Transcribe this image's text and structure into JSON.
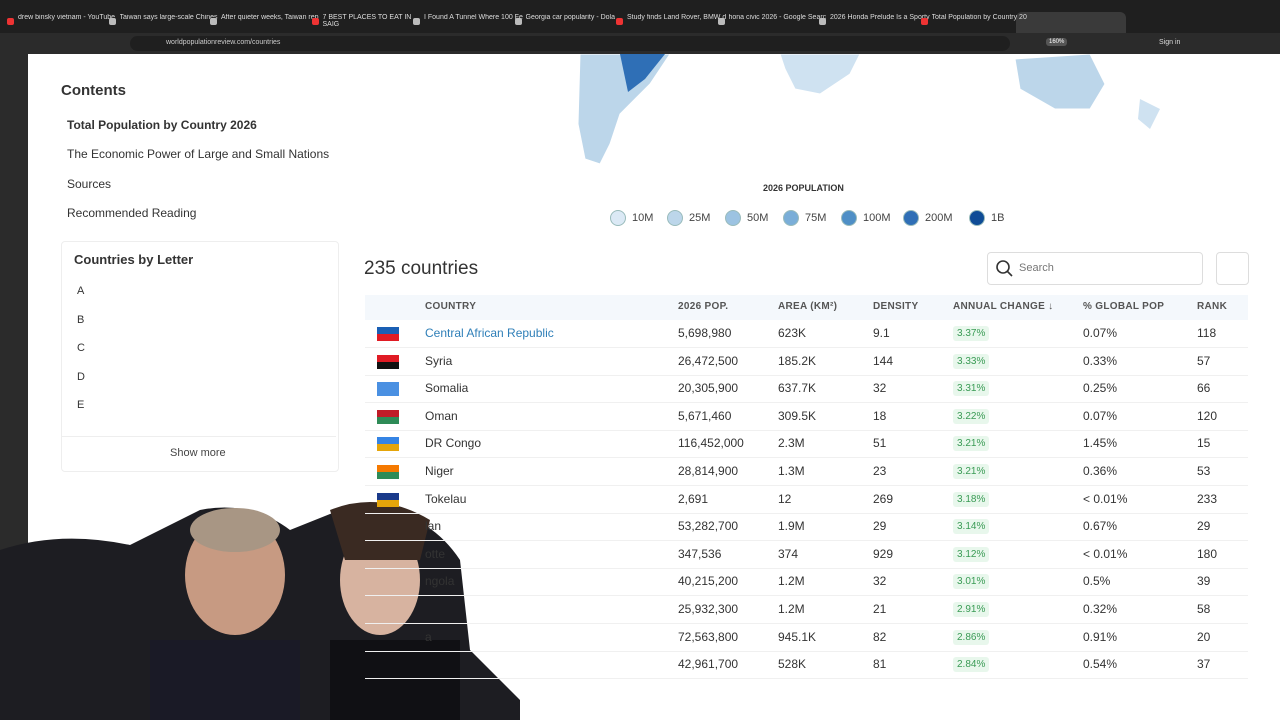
{
  "browser": {
    "tabs": [
      "drew binsky vietnam - YouTube",
      "Taiwan says large-scale Chines",
      "After quieter weeks, Taiwan rep",
      "7 BEST PLACES TO EAT IN SAIG",
      "I Found A Tunnel Where 100 Fe",
      "Georgia car popularity - Dola",
      "Study finds Land Rover, BMW d",
      "hona civic 2026 - Google Searc",
      "2026 Honda Prelude Is a Sporty",
      "Total Population by Country 20"
    ],
    "url": "worldpopulationreview.com/countries",
    "zoom": "160%",
    "sign_in": "Sign in"
  },
  "sidebar": {
    "contents_title": "Contents",
    "contents": [
      "Total Population by Country 2026",
      "The Economic Power of Large and Small Nations",
      "Sources",
      "Recommended Reading"
    ],
    "letters_title": "Countries by Letter",
    "letters": [
      "A",
      "B",
      "C",
      "D",
      "E"
    ],
    "show_more": "Show more"
  },
  "map": {
    "legend_title": "2026 POPULATION",
    "legend": [
      "10M",
      "25M",
      "50M",
      "75M",
      "100M",
      "200M",
      "1B"
    ]
  },
  "table": {
    "count": "235 countries",
    "search": "Search",
    "columns": [
      "COUNTRY",
      "2026 POP.",
      "AREA (KM²)",
      "DENSITY",
      "ANNUAL CHANGE ↓",
      "% GLOBAL POP",
      "RANK"
    ],
    "rows": [
      [
        "Central African Republic",
        "5,698,980",
        "623K",
        "9.1",
        "3.37%",
        "0.07%",
        "118"
      ],
      [
        "Syria",
        "26,472,500",
        "185.2K",
        "144",
        "3.33%",
        "0.33%",
        "57"
      ],
      [
        "Somalia",
        "20,305,900",
        "637.7K",
        "32",
        "3.31%",
        "0.25%",
        "66"
      ],
      [
        "Oman",
        "5,671,460",
        "309.5K",
        "18",
        "3.22%",
        "0.07%",
        "120"
      ],
      [
        "DR Congo",
        "116,452,000",
        "2.3M",
        "51",
        "3.21%",
        "1.45%",
        "15"
      ],
      [
        "Niger",
        "28,814,900",
        "1.3M",
        "23",
        "3.21%",
        "0.36%",
        "53"
      ],
      [
        "Tokelau",
        "2,691",
        "12",
        "269",
        "3.18%",
        "< 0.01%",
        "233"
      ],
      [
        "lan",
        "53,282,700",
        "1.9M",
        "29",
        "3.14%",
        "0.67%",
        "29"
      ],
      [
        "otte",
        "347,536",
        "374",
        "929",
        "3.12%",
        "< 0.01%",
        "180"
      ],
      [
        "ngola",
        "40,215,200",
        "1.2M",
        "32",
        "3.01%",
        "0.5%",
        "39"
      ],
      [
        null,
        "25,932,300",
        "1.2M",
        "21",
        "2.91%",
        "0.32%",
        "58"
      ],
      [
        "a",
        "72,563,800",
        "945.1K",
        "82",
        "2.86%",
        "0.91%",
        "20"
      ],
      [
        null,
        "42,961,700",
        "528K",
        "81",
        "2.84%",
        "0.54%",
        "37"
      ]
    ]
  }
}
